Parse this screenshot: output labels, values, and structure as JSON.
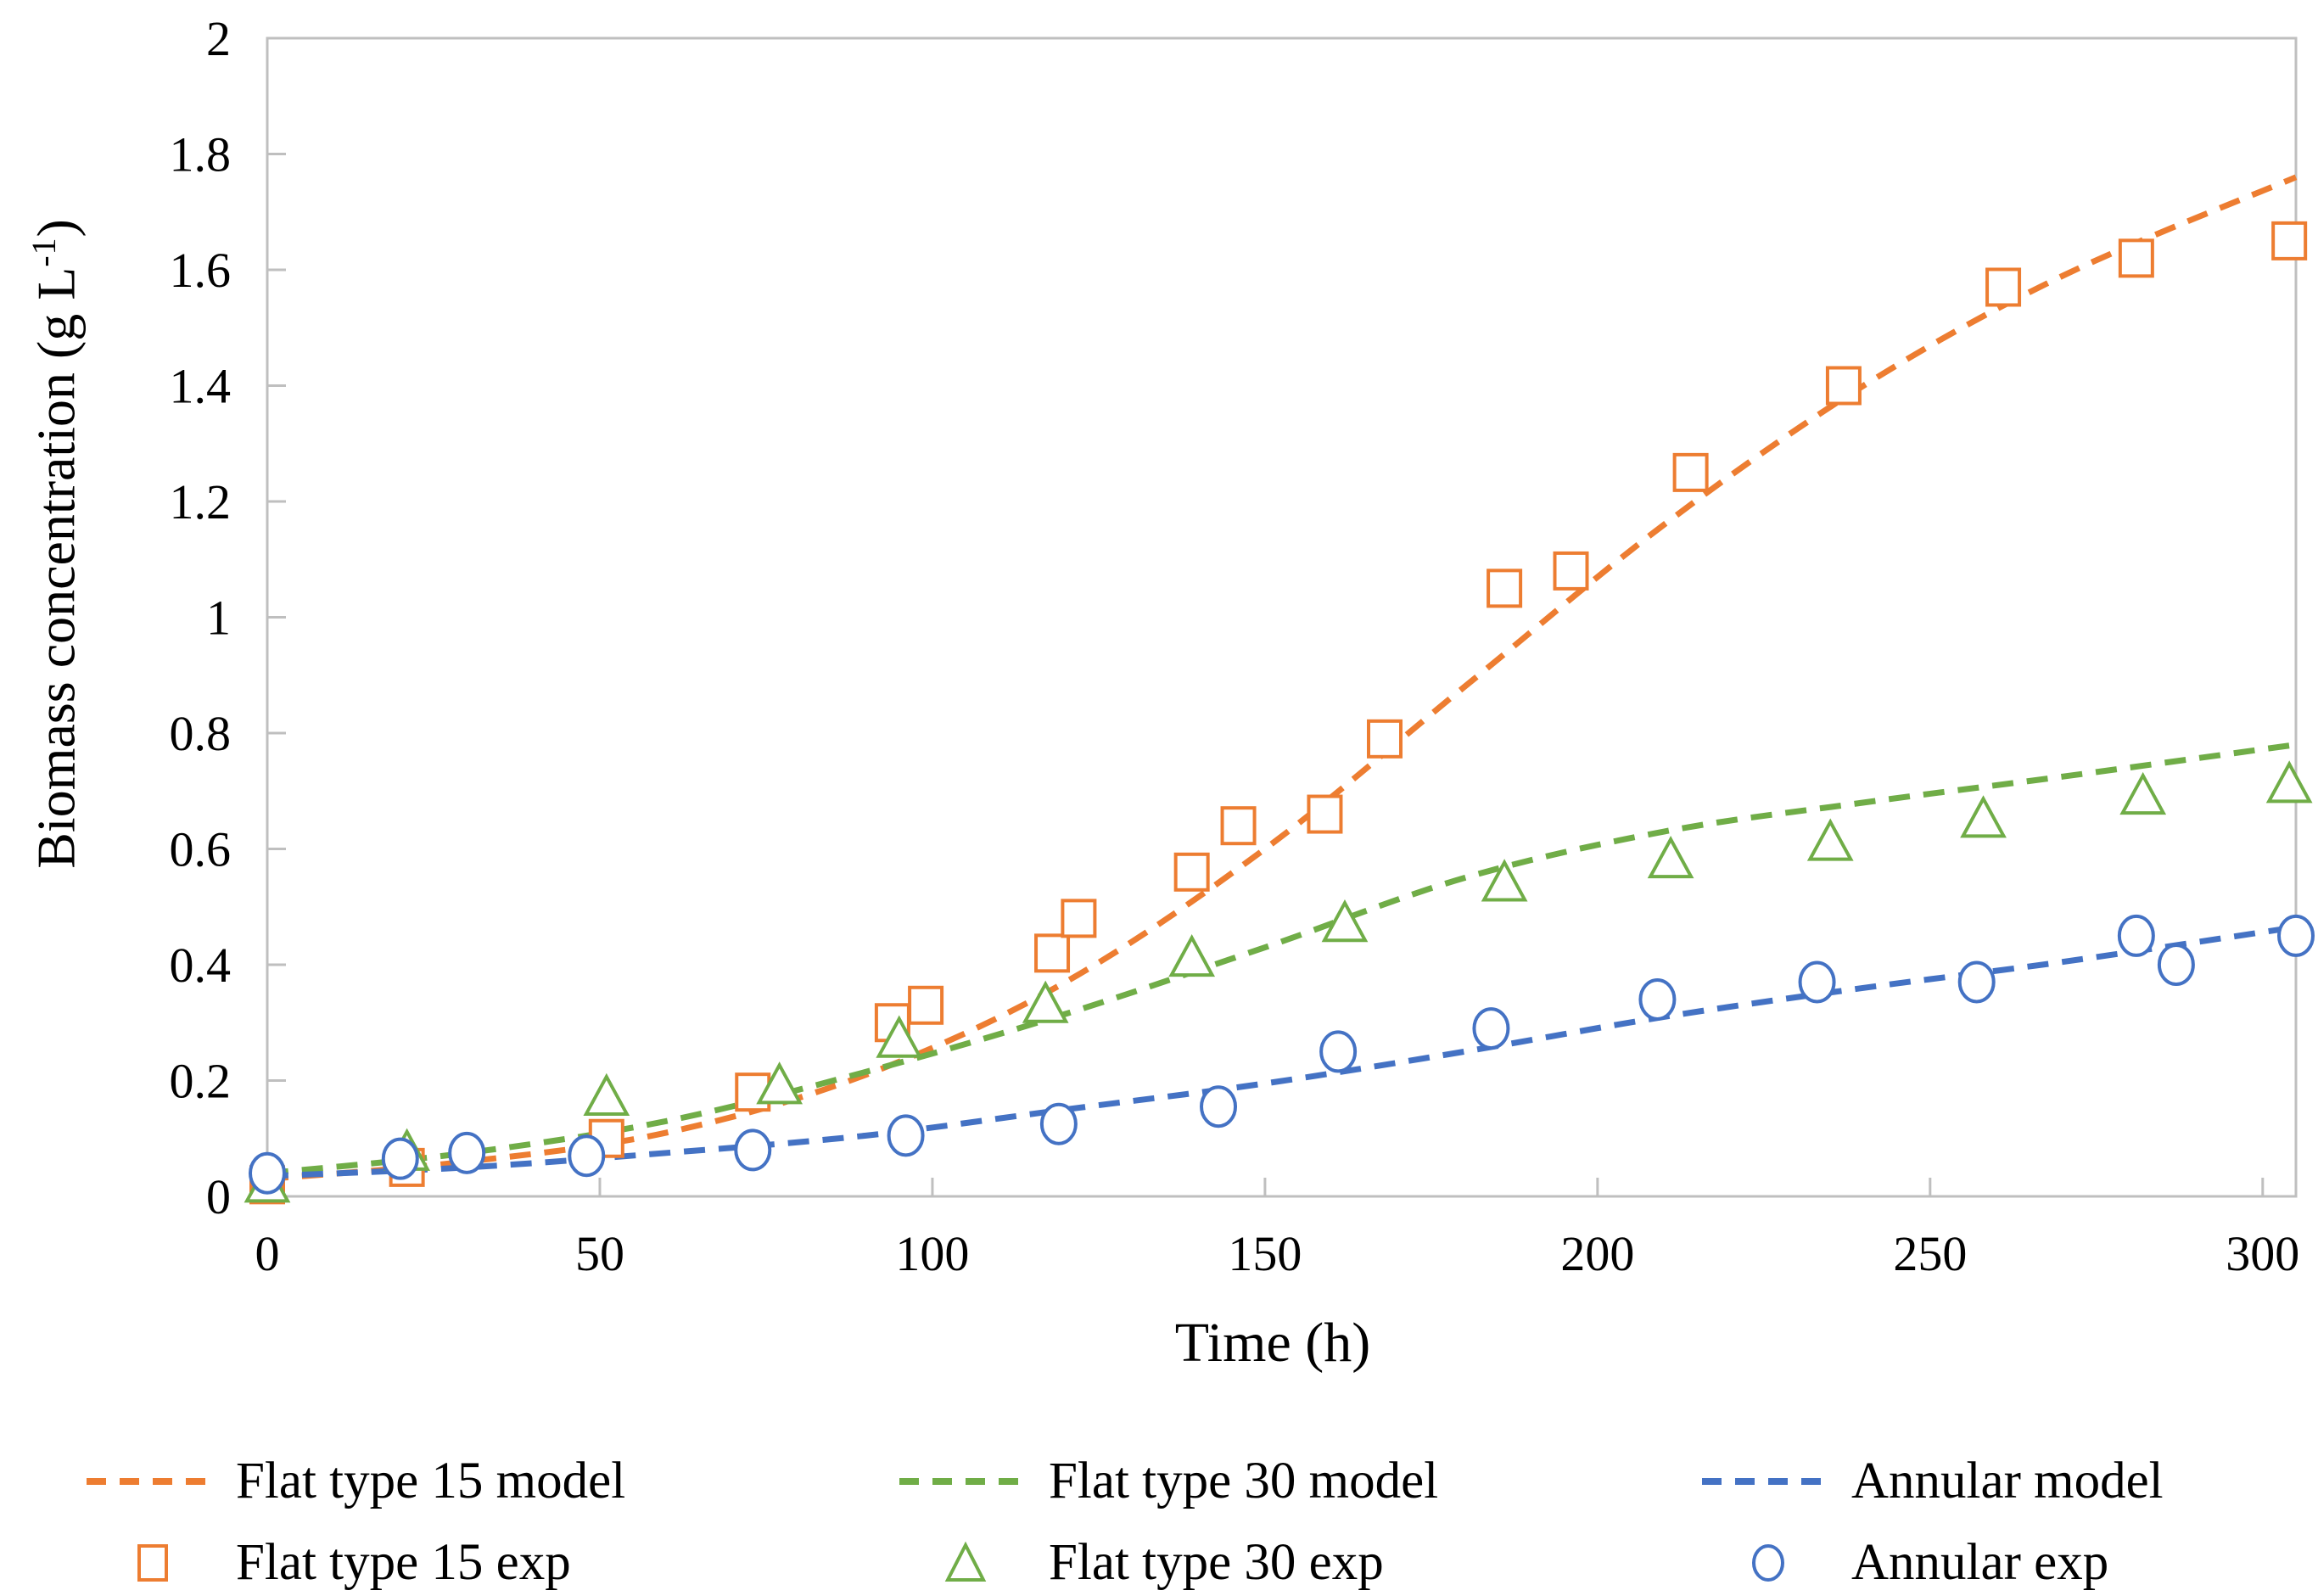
{
  "chart_data": {
    "type": "scatter+line",
    "title": "",
    "background": "#ffffff",
    "axis_color": "#BFBFBF",
    "grid": false,
    "x_axis": {
      "title": "Time (h)",
      "min": 0,
      "max": 305,
      "tick_values": [
        0,
        50,
        100,
        150,
        200,
        250,
        300
      ],
      "tick_labels": [
        "0",
        "50",
        "100",
        "150",
        "200",
        "250",
        "300"
      ]
    },
    "y_axis": {
      "title_main": "Biomass concentration (g L",
      "title_sup": "-1",
      "title_close": ")",
      "min": 0,
      "max": 2,
      "tick_values": [
        0,
        0.2,
        0.4,
        0.6,
        0.8,
        1,
        1.2,
        1.4,
        1.6,
        1.8,
        2
      ],
      "tick_labels": [
        "0",
        "0.2",
        "0.4",
        "0.6",
        "0.8",
        "1",
        "1.2",
        "1.4",
        "1.6",
        "1.8",
        "2"
      ]
    },
    "series": [
      {
        "name": "Flat type 15 model",
        "kind": "line",
        "dash": true,
        "color": "#ED7D31",
        "points": [
          [
            0,
            0.03
          ],
          [
            30,
            0.06
          ],
          [
            60,
            0.11
          ],
          [
            90,
            0.21
          ],
          [
            120,
            0.37
          ],
          [
            150,
            0.6
          ],
          [
            180,
            0.88
          ],
          [
            210,
            1.16
          ],
          [
            240,
            1.4
          ],
          [
            270,
            1.59
          ],
          [
            305,
            1.76
          ]
        ]
      },
      {
        "name": "Flat type 30 model",
        "kind": "line",
        "dash": true,
        "color": "#70AD47",
        "points": [
          [
            0,
            0.04
          ],
          [
            30,
            0.075
          ],
          [
            60,
            0.13
          ],
          [
            90,
            0.215
          ],
          [
            120,
            0.315
          ],
          [
            150,
            0.43
          ],
          [
            180,
            0.55
          ],
          [
            210,
            0.63
          ],
          [
            240,
            0.68
          ],
          [
            270,
            0.725
          ],
          [
            305,
            0.78
          ]
        ]
      },
      {
        "name": "Annular model",
        "kind": "line",
        "dash": true,
        "color": "#4472C4",
        "points": [
          [
            0,
            0.035
          ],
          [
            30,
            0.05
          ],
          [
            60,
            0.075
          ],
          [
            90,
            0.105
          ],
          [
            120,
            0.15
          ],
          [
            150,
            0.195
          ],
          [
            180,
            0.25
          ],
          [
            210,
            0.31
          ],
          [
            240,
            0.36
          ],
          [
            270,
            0.405
          ],
          [
            305,
            0.465
          ]
        ]
      },
      {
        "name": "Flat type 15 exp",
        "kind": "scatter",
        "marker": "square",
        "color": "#ED7D31",
        "points": [
          [
            0,
            0.02
          ],
          [
            21,
            0.05
          ],
          [
            51,
            0.1
          ],
          [
            73,
            0.18
          ],
          [
            94,
            0.3
          ],
          [
            99,
            0.33
          ],
          [
            118,
            0.42
          ],
          [
            122,
            0.48
          ],
          [
            139,
            0.56
          ],
          [
            146,
            0.64
          ],
          [
            159,
            0.66
          ],
          [
            168,
            0.79
          ],
          [
            186,
            1.05
          ],
          [
            196,
            1.08
          ],
          [
            214,
            1.25
          ],
          [
            237,
            1.4
          ],
          [
            261,
            1.57
          ],
          [
            281,
            1.62
          ],
          [
            304,
            1.65
          ]
        ]
      },
      {
        "name": "Flat type 30 exp",
        "kind": "scatter",
        "marker": "triangle",
        "color": "#70AD47",
        "points": [
          [
            0,
            0.02
          ],
          [
            21,
            0.075
          ],
          [
            51,
            0.17
          ],
          [
            77,
            0.19
          ],
          [
            95,
            0.27
          ],
          [
            117,
            0.33
          ],
          [
            139,
            0.41
          ],
          [
            162,
            0.47
          ],
          [
            186,
            0.54
          ],
          [
            211,
            0.58
          ],
          [
            235,
            0.61
          ],
          [
            258,
            0.65
          ],
          [
            282,
            0.69
          ],
          [
            304,
            0.71
          ]
        ]
      },
      {
        "name": "Annular exp",
        "kind": "scatter",
        "marker": "circle",
        "color": "#4472C4",
        "points": [
          [
            0,
            0.04
          ],
          [
            20,
            0.065
          ],
          [
            30,
            0.075
          ],
          [
            48,
            0.07
          ],
          [
            73,
            0.08
          ],
          [
            96,
            0.105
          ],
          [
            119,
            0.125
          ],
          [
            143,
            0.155
          ],
          [
            161,
            0.25
          ],
          [
            184,
            0.29
          ],
          [
            209,
            0.34
          ],
          [
            233,
            0.37
          ],
          [
            257,
            0.37
          ],
          [
            281,
            0.45
          ],
          [
            287,
            0.4
          ],
          [
            305,
            0.45
          ]
        ]
      }
    ],
    "legend_position": "bottom"
  }
}
